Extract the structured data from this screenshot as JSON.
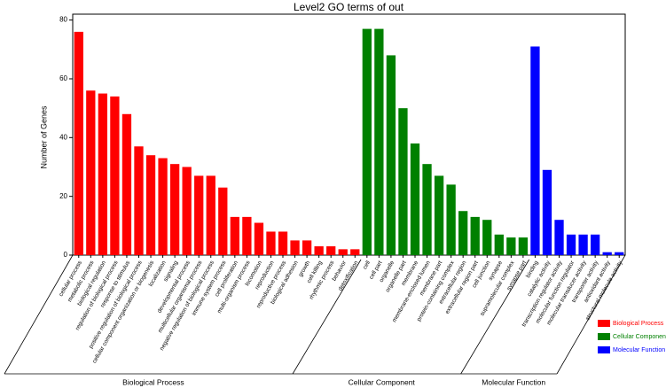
{
  "chart_data": {
    "type": "bar",
    "title": "Level2 GO terms of out",
    "y_label": "Number of Genes",
    "ylim": [
      0,
      82
    ],
    "yticks": [
      0,
      20,
      40,
      60,
      80
    ],
    "groups": [
      {
        "name": "Biological Process",
        "color": "#ff0000",
        "categories": [
          "cellular process",
          "metabolic process",
          "biological regulation",
          "regulation of biological process",
          "response to stimulus",
          "positive regulation of biological process",
          "cellular component organization or biogenesis",
          "localization",
          "signaling",
          "developmental process",
          "multicellular organismal process",
          "negative regulation of biological process",
          "immune system process",
          "cell proliferation",
          "multi-organism process",
          "locomotion",
          "reproduction",
          "reproductive process",
          "biological adhesion",
          "growth",
          "cell killing",
          "rhythmic process",
          "behavior",
          "detoxification"
        ],
        "values": [
          76,
          56,
          55,
          54,
          48,
          37,
          34,
          33,
          31,
          30,
          27,
          27,
          23,
          13,
          13,
          11,
          8,
          8,
          5,
          5,
          3,
          3,
          2,
          2
        ]
      },
      {
        "name": "Cellular Component",
        "color": "#008000",
        "categories": [
          "cell",
          "cell part",
          "organelle",
          "organelle part",
          "membrane",
          "membrane-enclosed lumen",
          "membrane part",
          "protein-containing complex",
          "extracellular region",
          "extracellular region part",
          "cell junction",
          "synapse",
          "supramolecular complex",
          "synapse part"
        ],
        "values": [
          77,
          77,
          68,
          50,
          38,
          31,
          27,
          24,
          15,
          13,
          12,
          7,
          6,
          6
        ]
      },
      {
        "name": "Molecular Function",
        "color": "#0000ff",
        "categories": [
          "binding",
          "catalytic activity",
          "transcription regulator activity",
          "molecular function regulator",
          "molecular transducer activity",
          "transporter activity",
          "antioxidant activity",
          "structural molecule activity"
        ],
        "values": [
          71,
          29,
          12,
          7,
          7,
          7,
          1,
          1
        ]
      }
    ]
  }
}
